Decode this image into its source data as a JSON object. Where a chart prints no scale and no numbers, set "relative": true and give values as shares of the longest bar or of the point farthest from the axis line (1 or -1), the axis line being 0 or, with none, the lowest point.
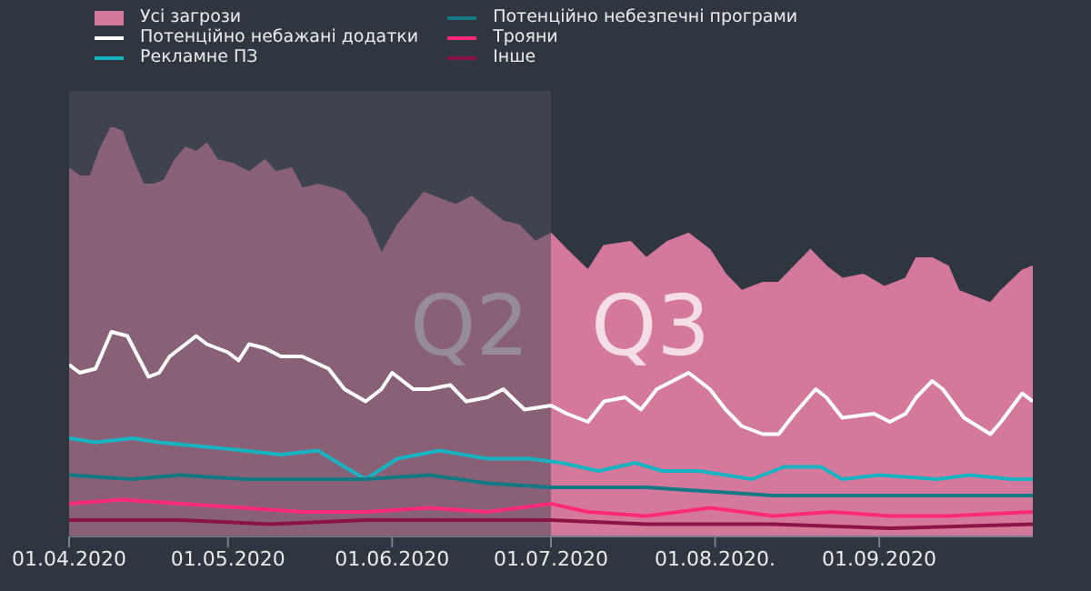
{
  "chart_data": {
    "type": "line",
    "relative": true,
    "legend": "top left",
    "marker": "none",
    "line_style": "solid",
    "xlim": [
      "2020-04-01",
      "2020-09-30"
    ],
    "xticks": [
      {
        "value": "2020-04-01",
        "label": "01.04.2020"
      },
      {
        "value": "2020-05-01",
        "label": "01.05.2020"
      },
      {
        "value": "2020-06-01",
        "label": "01.06.2020"
      },
      {
        "value": "2020-07-01",
        "label": "01.07.2020"
      },
      {
        "value": "2020-08-01",
        "label": "01.08.2020."
      },
      {
        "value": "2020-09-01",
        "label": "01.09.2020"
      }
    ],
    "bands": [
      {
        "axis": "x",
        "from": "2020-04-01",
        "to": "2020-07-01",
        "label": "Q2",
        "color": "#4a4f5a"
      }
    ],
    "annotations": [
      "Q3"
    ],
    "series": [
      {
        "name": "Усі загрози",
        "type": "area",
        "color": "#d4789c",
        "x": [
          "2020-04-01",
          "2020-04-03",
          "2020-04-05",
          "2020-04-07",
          "2020-04-09",
          "2020-04-11",
          "2020-04-13",
          "2020-04-15",
          "2020-04-17",
          "2020-04-19",
          "2020-04-21",
          "2020-04-23",
          "2020-04-25",
          "2020-04-27",
          "2020-04-29",
          "2020-05-02",
          "2020-05-05",
          "2020-05-08",
          "2020-05-10",
          "2020-05-13",
          "2020-05-15",
          "2020-05-18",
          "2020-05-21",
          "2020-05-23",
          "2020-05-27",
          "2020-05-30",
          "2020-06-02",
          "2020-06-07",
          "2020-06-13",
          "2020-06-16",
          "2020-06-22",
          "2020-06-25",
          "2020-06-28",
          "2020-07-01",
          "2020-07-04",
          "2020-07-08",
          "2020-07-11",
          "2020-07-16",
          "2020-07-19",
          "2020-07-23",
          "2020-07-27",
          "2020-07-31",
          "2020-08-03",
          "2020-08-06",
          "2020-08-10",
          "2020-08-13",
          "2020-08-16",
          "2020-08-19",
          "2020-08-22",
          "2020-08-25",
          "2020-08-29",
          "2020-09-02",
          "2020-09-06",
          "2020-09-08",
          "2020-09-11",
          "2020-09-14",
          "2020-09-16",
          "2020-09-22",
          "2020-09-24",
          "2020-09-28",
          "2020-09-30"
        ],
        "values": [
          0.9,
          0.88,
          0.88,
          0.95,
          1,
          0.99,
          0.92,
          0.86,
          0.86,
          0.87,
          0.92,
          0.95,
          0.94,
          0.96,
          0.92,
          0.91,
          0.89,
          0.92,
          0.89,
          0.9,
          0.85,
          0.86,
          0.85,
          0.84,
          0.78,
          0.69,
          0.76,
          0.84,
          0.81,
          0.83,
          0.77,
          0.76,
          0.72,
          0.74,
          0.7,
          0.65,
          0.71,
          0.72,
          0.68,
          0.72,
          0.74,
          0.7,
          0.64,
          0.6,
          0.62,
          0.62,
          0.66,
          0.7,
          0.66,
          0.63,
          0.64,
          0.61,
          0.63,
          0.68,
          0.68,
          0.66,
          0.6,
          0.57,
          0.6,
          0.65,
          0.66
        ]
      },
      {
        "name": "Потенційно небажані додатки",
        "color": "#ffffff",
        "x": [
          "2020-04-01",
          "2020-04-03",
          "2020-04-06",
          "2020-04-09",
          "2020-04-12",
          "2020-04-16",
          "2020-04-18",
          "2020-04-20",
          "2020-04-25",
          "2020-04-27",
          "2020-05-01",
          "2020-05-03",
          "2020-05-05",
          "2020-05-08",
          "2020-05-11",
          "2020-05-15",
          "2020-05-20",
          "2020-05-23",
          "2020-05-27",
          "2020-05-30",
          "2020-06-01",
          "2020-06-05",
          "2020-06-08",
          "2020-06-12",
          "2020-06-15",
          "2020-06-19",
          "2020-06-22",
          "2020-06-26",
          "2020-07-01",
          "2020-07-04",
          "2020-07-08",
          "2020-07-11",
          "2020-07-15",
          "2020-07-18",
          "2020-07-21",
          "2020-07-27",
          "2020-07-31",
          "2020-08-03",
          "2020-08-06",
          "2020-08-10",
          "2020-08-13",
          "2020-08-16",
          "2020-08-20",
          "2020-08-22",
          "2020-08-25",
          "2020-08-31",
          "2020-09-03",
          "2020-09-06",
          "2020-09-08",
          "2020-09-11",
          "2020-09-13",
          "2020-09-17",
          "2020-09-22",
          "2020-09-24",
          "2020-09-28",
          "2020-09-30"
        ],
        "values": [
          0.42,
          0.4,
          0.41,
          0.5,
          0.49,
          0.39,
          0.4,
          0.44,
          0.49,
          0.47,
          0.45,
          0.43,
          0.47,
          0.46,
          0.44,
          0.44,
          0.41,
          0.36,
          0.33,
          0.36,
          0.4,
          0.36,
          0.36,
          0.37,
          0.33,
          0.34,
          0.36,
          0.31,
          0.32,
          0.3,
          0.28,
          0.33,
          0.34,
          0.31,
          0.36,
          0.4,
          0.36,
          0.31,
          0.27,
          0.25,
          0.25,
          0.3,
          0.36,
          0.34,
          0.29,
          0.3,
          0.28,
          0.3,
          0.34,
          0.38,
          0.36,
          0.29,
          0.25,
          0.28,
          0.35,
          0.33
        ]
      },
      {
        "name": "Рекламне ПЗ",
        "color": "#17b3c1",
        "x": [
          "2020-04-01",
          "2020-04-06",
          "2020-04-13",
          "2020-04-18",
          "2020-04-26",
          "2020-05-04",
          "2020-05-11",
          "2020-05-18",
          "2020-05-23",
          "2020-05-27",
          "2020-06-02",
          "2020-06-10",
          "2020-06-19",
          "2020-06-27",
          "2020-07-03",
          "2020-07-10",
          "2020-07-17",
          "2020-07-22",
          "2020-07-29",
          "2020-08-08",
          "2020-08-14",
          "2020-08-21",
          "2020-08-25",
          "2020-09-01",
          "2020-09-12",
          "2020-09-18",
          "2020-09-26",
          "2020-09-30"
        ],
        "values": [
          0.24,
          0.23,
          0.24,
          0.23,
          0.22,
          0.21,
          0.2,
          0.21,
          0.17,
          0.14,
          0.19,
          0.21,
          0.19,
          0.19,
          0.18,
          0.16,
          0.18,
          0.16,
          0.16,
          0.14,
          0.17,
          0.17,
          0.14,
          0.15,
          0.14,
          0.15,
          0.14,
          0.14
        ]
      },
      {
        "name": "Потенційно небезпечні програми",
        "color": "#137a85",
        "x": [
          "2020-04-01",
          "2020-04-13",
          "2020-04-22",
          "2020-05-04",
          "2020-05-13",
          "2020-05-27",
          "2020-06-08",
          "2020-06-19",
          "2020-07-01",
          "2020-07-08",
          "2020-07-19",
          "2020-07-31",
          "2020-08-12",
          "2020-08-23",
          "2020-09-03",
          "2020-09-14",
          "2020-09-30"
        ],
        "values": [
          0.15,
          0.14,
          0.15,
          0.14,
          0.14,
          0.14,
          0.15,
          0.13,
          0.12,
          0.12,
          0.12,
          0.11,
          0.1,
          0.1,
          0.1,
          0.1,
          0.1
        ]
      },
      {
        "name": "Трояни",
        "color": "#ff2a78",
        "x": [
          "2020-04-01",
          "2020-04-11",
          "2020-04-22",
          "2020-05-04",
          "2020-05-15",
          "2020-05-27",
          "2020-06-08",
          "2020-06-19",
          "2020-07-01",
          "2020-07-08",
          "2020-07-19",
          "2020-07-31",
          "2020-08-12",
          "2020-08-23",
          "2020-09-03",
          "2020-09-14",
          "2020-09-30"
        ],
        "values": [
          0.08,
          0.09,
          0.08,
          0.07,
          0.06,
          0.06,
          0.07,
          0.06,
          0.08,
          0.06,
          0.05,
          0.07,
          0.05,
          0.06,
          0.05,
          0.05,
          0.06
        ]
      },
      {
        "name": "Інше",
        "color": "#8a1545",
        "x": [
          "2020-04-01",
          "2020-04-11",
          "2020-04-22",
          "2020-05-09",
          "2020-05-27",
          "2020-06-14",
          "2020-07-01",
          "2020-07-19",
          "2020-08-12",
          "2020-09-03",
          "2020-09-30"
        ],
        "values": [
          0.04,
          0.04,
          0.04,
          0.03,
          0.04,
          0.04,
          0.04,
          0.03,
          0.03,
          0.02,
          0.03
        ]
      }
    ]
  }
}
